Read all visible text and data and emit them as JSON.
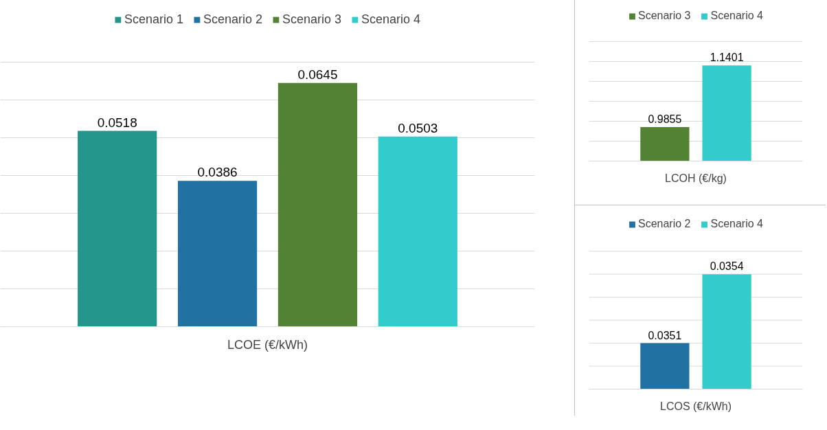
{
  "chart_data": [
    {
      "type": "bar",
      "xlabel": "LCOE (€/kWh)",
      "categories": [
        null
      ],
      "series": [
        {
          "name": "Scenario 1",
          "color": "#24958a",
          "values": [
            0.0518
          ]
        },
        {
          "name": "Scenario 2",
          "color": "#2271a3",
          "values": [
            0.0386
          ]
        },
        {
          "name": "Scenario 3",
          "color": "#548235",
          "values": [
            0.0645
          ]
        },
        {
          "name": "Scenario 4",
          "color": "#33cccc",
          "values": [
            0.0503
          ]
        }
      ],
      "ylim": [
        0,
        0.07
      ],
      "yticks": [
        {
          "value": 0,
          "label": null
        },
        {
          "value": 0.01,
          "label": null
        },
        {
          "value": 0.02,
          "label": null
        },
        {
          "value": 0.03,
          "label": null
        },
        {
          "value": 0.04,
          "label": null
        },
        {
          "value": 0.05,
          "label": null
        },
        {
          "value": 0.06,
          "label": null
        },
        {
          "value": 0.07,
          "label": null
        }
      ],
      "grid": "y",
      "legend": "top",
      "tick_labels": false,
      "data_labels": true
    },
    {
      "type": "bar",
      "xlabel": "LCOH (€/kg)",
      "categories": [
        null
      ],
      "series": [
        {
          "name": "Scenario 3",
          "color": "#548235",
          "values": [
            0.9855
          ]
        },
        {
          "name": "Scenario 4",
          "color": "#33cccc",
          "values": [
            1.1401
          ]
        }
      ],
      "ylim": [
        0.9,
        1.2
      ],
      "yticks": [
        {
          "value": 0.9,
          "label": null
        },
        {
          "value": 0.95,
          "label": null
        },
        {
          "value": 1.0,
          "label": null
        },
        {
          "value": 1.05,
          "label": null
        },
        {
          "value": 1.1,
          "label": null
        },
        {
          "value": 1.15,
          "label": null
        },
        {
          "value": 1.2,
          "label": null
        }
      ],
      "grid": "y",
      "legend": "top",
      "tick_labels": false,
      "data_labels": true
    },
    {
      "type": "bar",
      "xlabel": "LCOS (€/kWh)",
      "categories": [
        null
      ],
      "series": [
        {
          "name": "Scenario 2",
          "color": "#2271a3",
          "values": [
            0.0351
          ]
        },
        {
          "name": "Scenario 4",
          "color": "#33cccc",
          "values": [
            0.0354
          ]
        }
      ],
      "ylim": [
        0.0349,
        0.0355
      ],
      "yticks": [
        {
          "value": 0.0349,
          "label": null
        },
        {
          "value": 0.035,
          "label": null
        },
        {
          "value": 0.0351,
          "label": null
        },
        {
          "value": 0.0352,
          "label": null
        },
        {
          "value": 0.0353,
          "label": null
        },
        {
          "value": 0.0354,
          "label": null
        },
        {
          "value": 0.0355,
          "label": null
        }
      ],
      "grid": "y",
      "legend": "top",
      "tick_labels": false,
      "data_labels": true
    }
  ]
}
